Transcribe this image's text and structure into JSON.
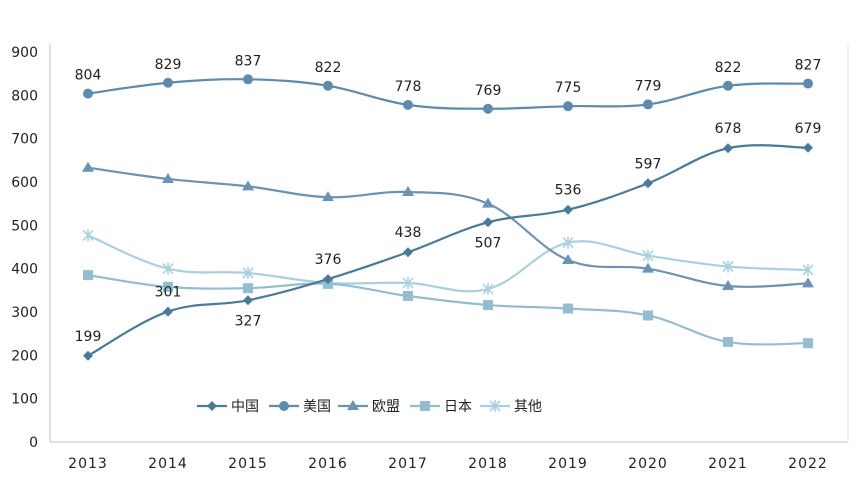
{
  "chart_data": {
    "type": "line",
    "title": "",
    "xlabel": "",
    "ylabel": "",
    "ylim": [
      0,
      900
    ],
    "yticks": [
      "0",
      "100",
      "200",
      "300",
      "400",
      "500",
      "600",
      "700",
      "800",
      "900"
    ],
    "categories": [
      "2013",
      "2014",
      "2015",
      "2016",
      "2017",
      "2018",
      "2019",
      "2020",
      "2021",
      "2022"
    ],
    "legend_position": "bottom-left inside plot",
    "series": [
      {
        "name": "中国",
        "marker": "diamond",
        "color": "#4a7a9a",
        "values": [
          199,
          301,
          327,
          376,
          438,
          507,
          536,
          597,
          678,
          679
        ],
        "labels": [
          "199",
          "301",
          "327",
          "376",
          "438",
          "507",
          "536",
          "597",
          "678",
          "679"
        ]
      },
      {
        "name": "美国",
        "marker": "circle",
        "color": "#5e8aae",
        "values": [
          804,
          829,
          837,
          822,
          778,
          769,
          775,
          779,
          822,
          827
        ],
        "labels": [
          "804",
          "829",
          "837",
          "822",
          "778",
          "769",
          "775",
          "779",
          "822",
          "827"
        ]
      },
      {
        "name": "欧盟",
        "marker": "triangle",
        "color": "#6c93b4",
        "values": [
          633,
          607,
          590,
          565,
          577,
          550,
          420,
          400,
          360,
          366
        ]
      },
      {
        "name": "日本",
        "marker": "square",
        "color": "#95bdd0",
        "values": [
          385,
          358,
          355,
          365,
          337,
          316,
          308,
          292,
          231,
          228
        ]
      },
      {
        "name": "其他",
        "marker": "star",
        "color": "#a9cfe0",
        "values": [
          477,
          400,
          390,
          367,
          367,
          353,
          460,
          430,
          405,
          397
        ]
      }
    ]
  }
}
